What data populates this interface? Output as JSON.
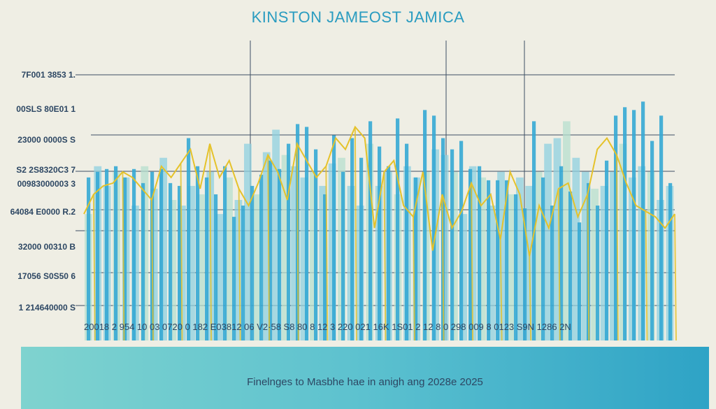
{
  "chart_data": {
    "type": "bar",
    "title": "KINSTON  JAMEOST JAMICA",
    "y_tick_labels": [
      "7F001 3853 1.",
      "00SLS 80E01 1",
      "23000 0000S S",
      "S2 2S8320C3 7",
      "00983000003 3",
      "64084 E0000 R.2",
      "32000 00310 B",
      "17056 S0S50 6",
      "1 214640000 S"
    ],
    "x_tick_text": "20018 2  954 10  03 0720 0 182 E03812   06 V2·58   S8 80 8 12 3  220 021   16K   1S01 2 12 8 0 298  009 8 0123  S9N 1286  2N",
    "ylim": [
      0,
      100
    ],
    "grid": true,
    "colors": {
      "bar_dark": "#35a8d4",
      "bar_light": "#8fd0e0",
      "bar_pale": "#b7dfcf",
      "line": "#e5c22a",
      "line2": "#8ccf4a"
    },
    "series": [
      {
        "values": [
          58,
          60,
          61,
          62,
          58,
          61,
          56,
          60,
          61,
          56,
          55,
          72,
          62,
          58,
          52,
          62,
          44,
          48,
          55,
          59,
          64,
          61,
          70,
          77,
          76,
          68,
          52,
          73,
          60,
          72,
          65,
          78,
          69,
          62,
          79,
          70,
          58,
          82,
          80,
          72,
          68,
          71,
          61,
          62,
          57,
          57,
          57,
          52,
          47,
          78,
          58,
          48,
          62,
          53,
          42,
          56,
          48,
          64,
          80,
          83,
          82,
          85,
          71,
          80,
          56
        ]
      },
      {
        "values": [
          45,
          62,
          55,
          60,
          58,
          48,
          62,
          54,
          65,
          50,
          48,
          55,
          52,
          60,
          45,
          58,
          50,
          70,
          52,
          67,
          75,
          66,
          62,
          58,
          60,
          55,
          63,
          65,
          55,
          48,
          70,
          55,
          60,
          52,
          62,
          58,
          60,
          68,
          66,
          60,
          45,
          62,
          58,
          48,
          60,
          52,
          58,
          55,
          60,
          70,
          72,
          78,
          65,
          60,
          54,
          55,
          60,
          70,
          58,
          62,
          60,
          50,
          55
        ]
      }
    ],
    "line_values": [
      45,
      52,
      55,
      56,
      60,
      58,
      54,
      50,
      62,
      58,
      63,
      68,
      54,
      70,
      58,
      64,
      54,
      48,
      56,
      66,
      60,
      50,
      70,
      64,
      58,
      62,
      72,
      68,
      76,
      72,
      40,
      60,
      64,
      48,
      44,
      60,
      32,
      52,
      40,
      46,
      56,
      48,
      52,
      36,
      60,
      52,
      30,
      48,
      40,
      54,
      56,
      44,
      52,
      68,
      72,
      66,
      56,
      48,
      46,
      44,
      40,
      45
    ]
  },
  "footer": {
    "text": "Finelnges to Masbhe hae in anigh ang 2028e 2025"
  }
}
